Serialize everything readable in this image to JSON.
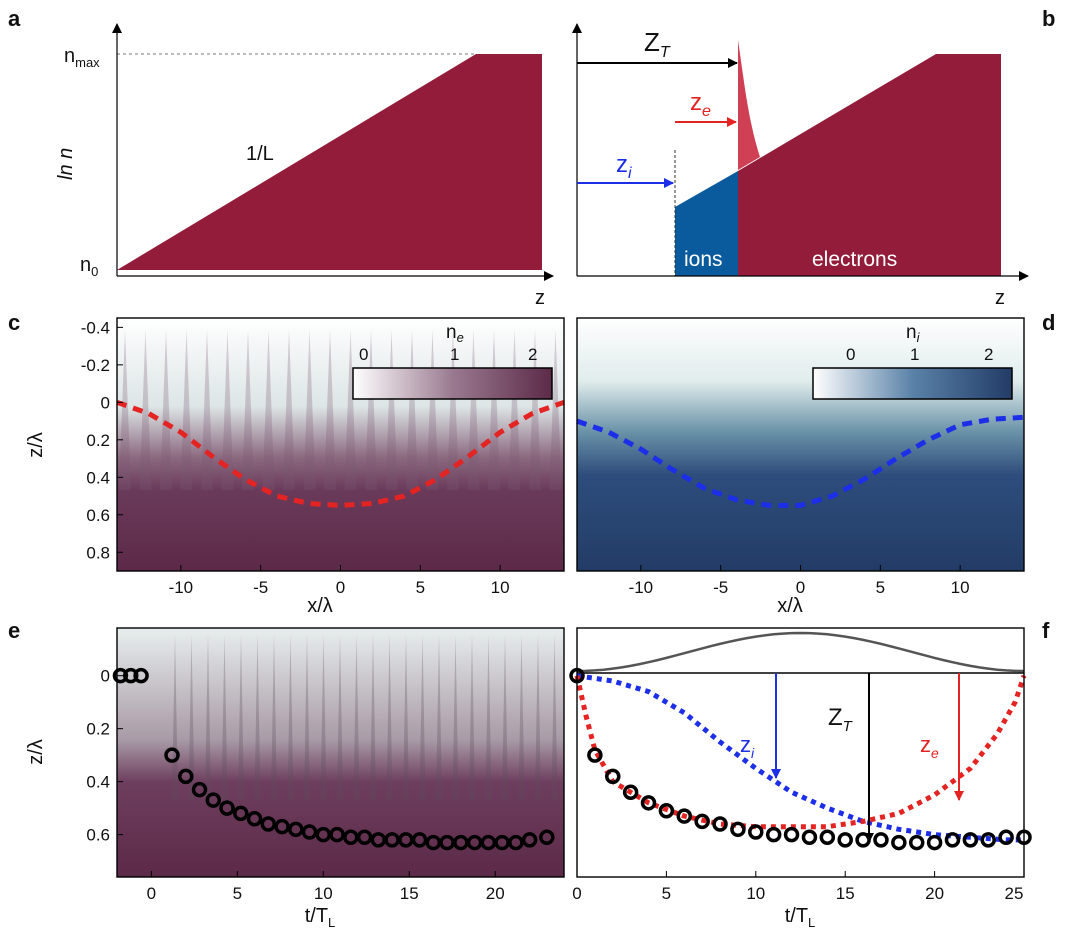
{
  "panel_labels": {
    "a": "a",
    "b": "b",
    "c": "c",
    "d": "d",
    "e": "e",
    "f": "f"
  },
  "panel_a": {
    "ylabel": "ln n",
    "xlabel": "z",
    "nmax": "n",
    "nmax_sub": "max",
    "n0": "n",
    "n0_sub": "0",
    "slope": "1/L",
    "colors": {
      "plasma": "#921c3a"
    }
  },
  "panel_b": {
    "xlabel": "z",
    "ZT": "Z",
    "ZT_sub": "T",
    "ze": "z",
    "ze_sub": "e",
    "zi": "z",
    "zi_sub": "i",
    "ions": "ions",
    "electrons": "electrons",
    "colors": {
      "ions": "#0a5a9e",
      "electrons": "#921c3a",
      "spike": "#cf4055"
    }
  },
  "panel_c": {
    "ylabel": "z/λ",
    "xlabel": "x/λ",
    "cbar_label": "n",
    "cbar_sub": "e",
    "cbar_ticks": [
      "0",
      "1",
      "2"
    ],
    "yticks": [
      "-0.4",
      "-0.2",
      "0",
      "0.2",
      "0.4",
      "0.6",
      "0.8"
    ],
    "xticks": [
      "-10",
      "-5",
      "0",
      "5",
      "10"
    ],
    "colors": {
      "map": "#5c2a48",
      "curve": "#e42323"
    }
  },
  "panel_d": {
    "xlabel": "x/λ",
    "cbar_label": "n",
    "cbar_sub": "i",
    "cbar_ticks": [
      "0",
      "1",
      "2"
    ],
    "xticks": [
      "-10",
      "-5",
      "0",
      "5",
      "10"
    ],
    "colors": {
      "map": "#223c66",
      "curve": "#1c2ee8"
    }
  },
  "panel_e": {
    "ylabel": "z/λ",
    "xlabel": "t/T",
    "xlabel_sub": "L",
    "yticks": [
      "0",
      "0.2",
      "0.4",
      "0.6"
    ],
    "xticks": [
      "0",
      "5",
      "10",
      "15",
      "20"
    ]
  },
  "panel_f": {
    "xlabel": "t/T",
    "xlabel_sub": "L",
    "xticks": [
      "0",
      "5",
      "10",
      "15",
      "20",
      "25"
    ],
    "zi": "z",
    "zi_sub": "i",
    "ZT": "Z",
    "ZT_sub": "T",
    "ze": "z",
    "ze_sub": "e",
    "colors": {
      "zi": "#1c2ee8",
      "ze": "#e42323",
      "ZT": "#000000",
      "pulse": "#555555"
    }
  },
  "chart_data": [
    {
      "type": "line",
      "panel": "c",
      "series": [
        {
          "x": [
            -14,
            -12,
            -10,
            -8,
            -6,
            -4,
            -2,
            0,
            2,
            4,
            6,
            8,
            10,
            12,
            14
          ],
          "y": [
            0.0,
            0.06,
            0.16,
            0.29,
            0.41,
            0.5,
            0.54,
            0.55,
            0.54,
            0.5,
            0.41,
            0.29,
            0.16,
            0.06,
            0.0
          ]
        }
      ],
      "xlim": [
        -14,
        14
      ],
      "ylim": [
        -0.45,
        0.9
      ]
    },
    {
      "type": "line",
      "panel": "d",
      "series": [
        {
          "x": [
            -14,
            -12,
            -10,
            -8,
            -6,
            -4,
            -2,
            0,
            2,
            4,
            6,
            8,
            10,
            12,
            14
          ],
          "y": [
            0.1,
            0.16,
            0.25,
            0.36,
            0.46,
            0.52,
            0.55,
            0.55,
            0.5,
            0.41,
            0.3,
            0.2,
            0.12,
            0.09,
            0.08
          ]
        }
      ],
      "xlim": [
        -14,
        14
      ],
      "ylim": [
        -0.45,
        0.9
      ]
    },
    {
      "type": "scatter",
      "panel": "e",
      "series": [
        {
          "x": [
            -1.8,
            -1.2,
            -0.6,
            1.2,
            2,
            2.8,
            3.6,
            4.4,
            5.2,
            6,
            6.8,
            7.6,
            8.4,
            9.2,
            10,
            10.8,
            11.6,
            12.4,
            13.2,
            14,
            14.8,
            15.6,
            16.4,
            17.2,
            18,
            18.8,
            19.6,
            20.4,
            21.2,
            22,
            23
          ],
          "y": [
            0,
            0,
            0,
            0.3,
            0.38,
            0.43,
            0.47,
            0.5,
            0.52,
            0.54,
            0.56,
            0.57,
            0.58,
            0.59,
            0.6,
            0.6,
            0.61,
            0.61,
            0.62,
            0.62,
            0.62,
            0.62,
            0.63,
            0.63,
            0.63,
            0.63,
            0.63,
            0.63,
            0.63,
            0.62,
            0.61
          ]
        }
      ],
      "xlim": [
        -2,
        24
      ],
      "ylim": [
        -0.18,
        0.76
      ]
    },
    {
      "type": "line",
      "panel": "f",
      "series": [
        {
          "name": "z_i",
          "x": [
            0,
            2,
            4,
            6,
            8,
            10,
            12,
            14,
            16,
            18,
            20,
            22,
            24,
            25
          ],
          "y": [
            0,
            0.02,
            0.06,
            0.14,
            0.25,
            0.35,
            0.44,
            0.5,
            0.55,
            0.58,
            0.6,
            0.61,
            0.62,
            0.62
          ]
        },
        {
          "name": "z_e",
          "x": [
            0,
            0.5,
            1,
            2,
            4,
            6,
            8,
            10,
            12,
            14,
            16,
            18,
            20,
            22,
            23.5,
            24.5,
            25
          ],
          "y": [
            0,
            0.15,
            0.28,
            0.4,
            0.48,
            0.53,
            0.56,
            0.57,
            0.57,
            0.57,
            0.55,
            0.52,
            0.45,
            0.35,
            0.22,
            0.1,
            0
          ]
        },
        {
          "name": "Z_T",
          "x": [
            0,
            1,
            2,
            3,
            4,
            5,
            6,
            7,
            8,
            9,
            10,
            11,
            12,
            13,
            14,
            15,
            16,
            17,
            18,
            19,
            20,
            21,
            22,
            23,
            24,
            25
          ],
          "y": [
            0,
            0.3,
            0.38,
            0.44,
            0.48,
            0.51,
            0.53,
            0.55,
            0.56,
            0.58,
            0.59,
            0.6,
            0.6,
            0.61,
            0.61,
            0.62,
            0.62,
            0.62,
            0.63,
            0.63,
            0.63,
            0.62,
            0.62,
            0.62,
            0.61,
            0.61
          ]
        }
      ],
      "xlim": [
        0,
        25
      ],
      "ylim": [
        -0.18,
        0.76
      ]
    }
  ]
}
